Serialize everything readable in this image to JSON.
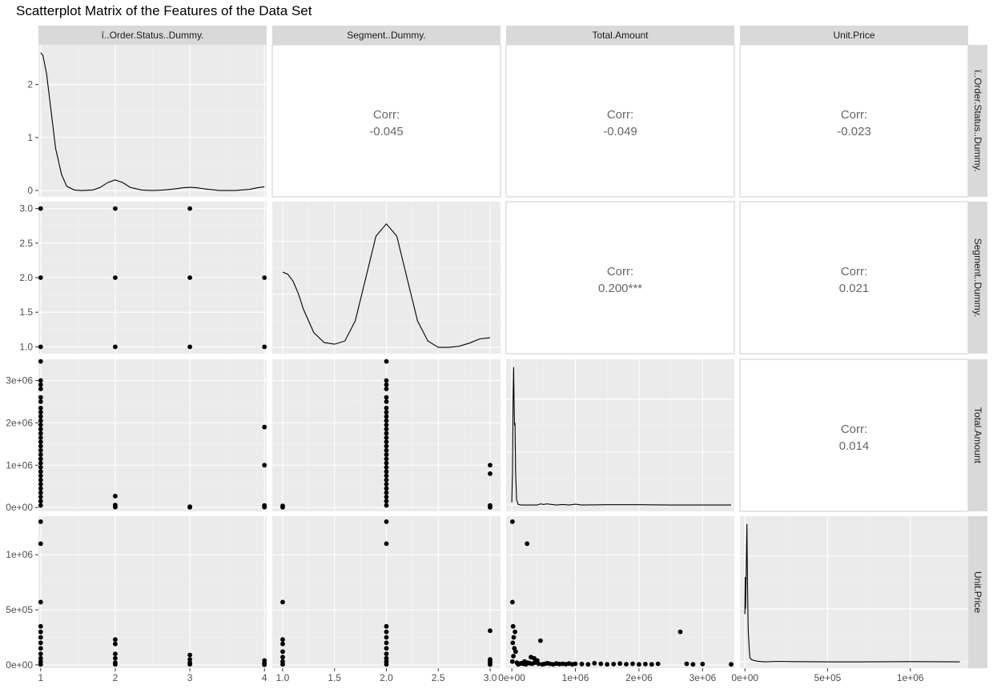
{
  "chart_data": {
    "type": "scatter",
    "title": "Scatterplot Matrix of the Features of the Data Set",
    "variables": [
      "ï..Order.Status..Dummy.",
      "Segment..Dummy.",
      "Total.Amount",
      "Unit.Price"
    ],
    "axes": [
      {
        "name": "ï..Order.Status..Dummy.",
        "range": [
          0.97,
          4.03
        ],
        "ticks": [
          1,
          2,
          3,
          4
        ],
        "tick_labels": [
          "1",
          "2",
          "3",
          "4"
        ]
      },
      {
        "name": "Segment..Dummy.",
        "range": [
          0.9,
          3.1
        ],
        "ticks": [
          1.0,
          1.5,
          2.0,
          2.5,
          3.0
        ],
        "tick_labels": [
          "1.0",
          "1.5",
          "2.0",
          "2.5",
          "3.0"
        ]
      },
      {
        "name": "Total.Amount",
        "range": [
          -90000,
          3500000
        ],
        "ticks": [
          0,
          1000000,
          2000000,
          3000000
        ],
        "tick_labels": [
          "0e+00",
          "1e+06",
          "2e+06",
          "3e+06"
        ]
      },
      {
        "name": "Unit.Price",
        "range": [
          -30000,
          1350000
        ],
        "ticks": [
          0,
          500000,
          1000000
        ],
        "tick_labels": [
          "0e+00",
          "5e+05",
          "1e+06"
        ]
      }
    ],
    "density_axis": {
      "range": [
        -0.12,
        2.75
      ],
      "ticks": [
        0,
        1,
        2
      ],
      "tick_labels": [
        "0",
        "1",
        "2"
      ]
    },
    "correlations": [
      {
        "row": 0,
        "col": 1,
        "label": "Corr:",
        "value": "-0.045"
      },
      {
        "row": 0,
        "col": 2,
        "label": "Corr:",
        "value": "-0.049"
      },
      {
        "row": 0,
        "col": 3,
        "label": "Corr:",
        "value": "-0.023"
      },
      {
        "row": 1,
        "col": 2,
        "label": "Corr:",
        "value": "0.200***"
      },
      {
        "row": 1,
        "col": 3,
        "label": "Corr:",
        "value": "0.021"
      },
      {
        "row": 2,
        "col": 3,
        "label": "Corr:",
        "value": "0.014"
      }
    ],
    "densities": [
      {
        "var": 0,
        "x": [
          1.0,
          1.03,
          1.08,
          1.14,
          1.2,
          1.28,
          1.35,
          1.45,
          1.55,
          1.7,
          1.8,
          1.9,
          2.0,
          2.1,
          2.2,
          2.35,
          2.5,
          2.65,
          2.8,
          2.9,
          3.0,
          3.1,
          3.2,
          3.4,
          3.6,
          3.8,
          3.9,
          4.0
        ],
        "y": [
          2.6,
          2.55,
          2.2,
          1.5,
          0.8,
          0.3,
          0.08,
          0.01,
          0.0,
          0.01,
          0.06,
          0.15,
          0.2,
          0.15,
          0.06,
          0.01,
          0.0,
          0.01,
          0.03,
          0.05,
          0.06,
          0.05,
          0.03,
          0.0,
          0.0,
          0.02,
          0.05,
          0.07
        ]
      },
      {
        "var": 1,
        "x": [
          1.0,
          1.05,
          1.1,
          1.15,
          1.2,
          1.3,
          1.4,
          1.5,
          1.6,
          1.7,
          1.8,
          1.9,
          2.0,
          2.1,
          2.2,
          2.3,
          2.4,
          2.5,
          2.6,
          2.7,
          2.8,
          2.9,
          3.0
        ],
        "y": [
          1.42,
          1.38,
          1.25,
          1.02,
          0.72,
          0.28,
          0.09,
          0.06,
          0.12,
          0.5,
          1.3,
          2.1,
          2.33,
          2.1,
          1.3,
          0.5,
          0.12,
          0.0,
          0.0,
          0.02,
          0.08,
          0.16,
          0.18
        ]
      },
      {
        "var": 2,
        "x": [
          0,
          10000,
          20000,
          28000,
          35000,
          42000,
          50000,
          60000,
          75000,
          100000,
          150000,
          200000,
          300000,
          400000,
          450000,
          500000,
          550000,
          700000,
          800000,
          900000,
          1000000,
          1100000,
          1500000,
          2000000,
          2500000,
          3000000,
          3450000
        ],
        "y": [
          0.05,
          0.6,
          2.0,
          2.6,
          2.0,
          1.5,
          1.55,
          0.6,
          0.1,
          0.01,
          0.0,
          0.0,
          0.0,
          0.0,
          0.02,
          0.01,
          0.02,
          0.0,
          0.01,
          0.0,
          0.015,
          0.0,
          0.005,
          0.005,
          0.0,
          0.0,
          0.0
        ]
      },
      {
        "var": 3,
        "x": [
          0,
          2000,
          4000,
          8000,
          12000,
          16000,
          20000,
          25000,
          30000,
          40000,
          60000,
          80000,
          120000,
          200000,
          300000,
          500000,
          700000,
          1000000,
          1300000
        ],
        "y": [
          0.9,
          1.6,
          1.0,
          1.7,
          2.6,
          1.4,
          0.6,
          0.3,
          0.08,
          0.04,
          0.02,
          0.01,
          0.0,
          0.008,
          0.004,
          0.0,
          0.0,
          0.004,
          0.0
        ]
      }
    ],
    "points": [
      {
        "row": 1,
        "col": 0,
        "x": [
          1,
          2,
          3,
          1,
          2,
          3,
          4,
          1,
          2,
          3,
          4
        ],
        "y": [
          3,
          3,
          3,
          2,
          2,
          2,
          2,
          1,
          1,
          1,
          1
        ]
      },
      {
        "row": 2,
        "col": 0,
        "x": [
          1,
          1,
          1,
          1,
          1,
          1,
          1,
          1,
          1,
          1,
          1,
          1,
          1,
          1,
          1,
          1,
          1,
          1,
          1,
          1,
          1,
          1,
          1,
          1,
          1,
          1,
          1,
          1,
          1,
          1,
          2,
          2,
          2,
          3,
          3,
          4,
          4,
          4,
          4
        ],
        "y": [
          3450000,
          3000000,
          2900000,
          2800000,
          2600000,
          2500000,
          2350000,
          2250000,
          2150000,
          2050000,
          1950000,
          1850000,
          1750000,
          1650000,
          1550000,
          1450000,
          1350000,
          1250000,
          1150000,
          1050000,
          950000,
          850000,
          750000,
          650000,
          550000,
          450000,
          350000,
          250000,
          150000,
          50000,
          270000,
          60000,
          10000,
          20000,
          5000,
          1900000,
          1000000,
          50000,
          10000
        ]
      },
      {
        "row": 2,
        "col": 1,
        "x": [
          1,
          1,
          2,
          2,
          2,
          2,
          2,
          2,
          2,
          2,
          2,
          2,
          2,
          2,
          2,
          2,
          2,
          2,
          2,
          2,
          2,
          2,
          2,
          2,
          2,
          2,
          2,
          2,
          2,
          2,
          2,
          2,
          3,
          3,
          3,
          3
        ],
        "y": [
          40000,
          5000,
          3450000,
          3000000,
          2900000,
          2800000,
          2600000,
          2500000,
          2350000,
          2250000,
          2150000,
          2050000,
          1950000,
          1850000,
          1750000,
          1650000,
          1550000,
          1450000,
          1350000,
          1250000,
          1150000,
          1050000,
          950000,
          850000,
          750000,
          650000,
          550000,
          450000,
          350000,
          250000,
          150000,
          50000,
          1000000,
          800000,
          50000,
          5000
        ]
      },
      {
        "row": 3,
        "col": 0,
        "x": [
          1,
          1,
          1,
          1,
          1,
          1,
          1,
          1,
          1,
          1,
          1,
          1,
          2,
          2,
          2,
          2,
          2,
          2,
          3,
          3,
          3,
          3,
          4,
          4,
          4
        ],
        "y": [
          1300000,
          1100000,
          570000,
          350000,
          300000,
          250000,
          200000,
          150000,
          100000,
          60000,
          30000,
          5000,
          230000,
          190000,
          100000,
          60000,
          20000,
          5000,
          90000,
          50000,
          20000,
          5000,
          40000,
          15000,
          2000
        ]
      },
      {
        "row": 3,
        "col": 1,
        "x": [
          1,
          1,
          1,
          1,
          1,
          1,
          1,
          2,
          2,
          2,
          2,
          2,
          2,
          2,
          2,
          2,
          2,
          2,
          3,
          3,
          3,
          3,
          3
        ],
        "y": [
          570000,
          230000,
          190000,
          120000,
          70000,
          30000,
          5000,
          1300000,
          1100000,
          350000,
          300000,
          250000,
          200000,
          150000,
          100000,
          60000,
          30000,
          5000,
          310000,
          50000,
          30000,
          15000,
          3000
        ]
      },
      {
        "row": 3,
        "col": 2,
        "x": [
          10000,
          240000,
          10000,
          20000,
          50000,
          30000,
          15000,
          40000,
          60000,
          25000,
          8000,
          450000,
          300000,
          350000,
          400000,
          200000,
          250000,
          150000,
          120000,
          100000,
          80000,
          180000,
          220000,
          280000,
          320000,
          360000,
          420000,
          480000,
          520000,
          560000,
          600000,
          650000,
          700000,
          750000,
          800000,
          850000,
          900000,
          950000,
          1000000,
          1100000,
          1200000,
          1300000,
          1400000,
          1500000,
          1600000,
          1700000,
          1800000,
          1900000,
          2000000,
          2100000,
          2200000,
          2300000,
          2650000,
          2750000,
          2850000,
          3000000,
          3450000
        ],
        "y": [
          1300000,
          1100000,
          570000,
          350000,
          300000,
          250000,
          200000,
          150000,
          120000,
          80000,
          30000,
          220000,
          70000,
          60000,
          40000,
          30000,
          20000,
          15000,
          10000,
          5000,
          20000,
          10000,
          5000,
          15000,
          10000,
          20000,
          10000,
          5000,
          10000,
          15000,
          10000,
          5000,
          12000,
          8000,
          10000,
          6000,
          12000,
          5000,
          10000,
          8000,
          5000,
          15000,
          10000,
          5000,
          8000,
          12000,
          6000,
          10000,
          5000,
          8000,
          5000,
          10000,
          300000,
          10000,
          5000,
          8000,
          5000
        ]
      }
    ]
  }
}
